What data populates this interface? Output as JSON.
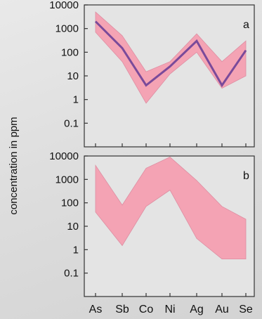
{
  "chart_data": [
    {
      "type": "area",
      "panel_label": "a",
      "categories": [
        "As",
        "Sb",
        "Co",
        "Ni",
        "Ag",
        "Au",
        "Se"
      ],
      "ylabel": "concentration in ppm",
      "yscale": "log",
      "ylim": [
        0.01,
        10000
      ],
      "yticks": [
        "10000",
        "1000",
        "100",
        "10",
        "1",
        "0.1"
      ],
      "range_upper": [
        5000,
        500,
        15,
        40,
        600,
        40,
        300
      ],
      "range_lower": [
        700,
        40,
        0.7,
        12,
        100,
        3,
        10
      ],
      "series": [
        {
          "values": [
            2000,
            150,
            4,
            25,
            300,
            4,
            120
          ]
        }
      ],
      "colors": {
        "band": "#f4a3b4",
        "band_edge": "#dd8ea2",
        "line": "#7a4a9a",
        "background": "#e4e4e4"
      }
    },
    {
      "type": "area",
      "panel_label": "b",
      "categories": [
        "As",
        "Sb",
        "Co",
        "Ni",
        "Ag",
        "Au",
        "Se"
      ],
      "yscale": "log",
      "ylim": [
        0.01,
        10000
      ],
      "yticks": [
        "10000",
        "1000",
        "100",
        "10",
        "1",
        "0.1"
      ],
      "range_upper": [
        4000,
        80,
        3000,
        9000,
        900,
        70,
        20
      ],
      "range_lower": [
        40,
        1.5,
        70,
        350,
        3,
        0.4,
        0.4
      ],
      "colors": {
        "band": "#f4a3b4",
        "band_edge": "#dd8ea2",
        "background": "#e4e4e4"
      }
    }
  ]
}
